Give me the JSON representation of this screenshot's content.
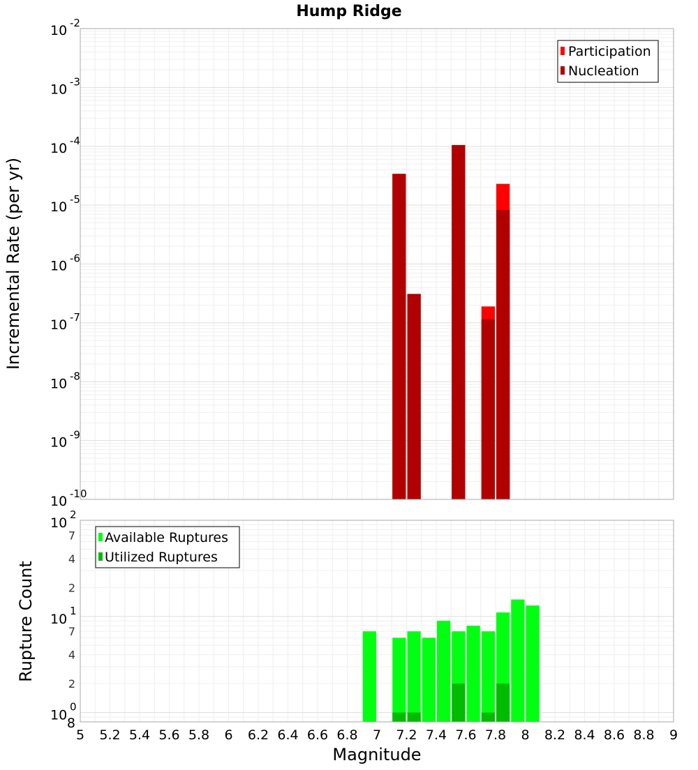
{
  "chart_data": [
    {
      "type": "bar",
      "title": "Hump Ridge",
      "xlabel": "Magnitude",
      "ylabel": "Incremental Rate (per yr)",
      "yscale": "log",
      "xlim": [
        5,
        9
      ],
      "ylim": [
        1e-10,
        0.01
      ],
      "y_tick_exponents": [
        "-2",
        "-3",
        "-4",
        "-5",
        "-6",
        "-7",
        "-8",
        "-9",
        "-10"
      ],
      "legend_position": "top-right",
      "grid": true,
      "series": [
        {
          "name": "Participation",
          "color": "#ff0000",
          "points": [
            {
              "x": 7.15,
              "y": 3.4e-05
            },
            {
              "x": 7.25,
              "y": 3.1e-07
            },
            {
              "x": 7.55,
              "y": 0.000105
            },
            {
              "x": 7.75,
              "y": 1.9e-07
            },
            {
              "x": 7.85,
              "y": 2.3e-05
            }
          ]
        },
        {
          "name": "Nucleation",
          "color": "#b00000",
          "points": [
            {
              "x": 7.15,
              "y": 3.4e-05
            },
            {
              "x": 7.25,
              "y": 3.1e-07
            },
            {
              "x": 7.55,
              "y": 0.000105
            },
            {
              "x": 7.75,
              "y": 1.15e-07
            },
            {
              "x": 7.85,
              "y": 8.3e-06
            }
          ]
        }
      ]
    },
    {
      "type": "bar",
      "xlabel": "Magnitude",
      "ylabel": "Rupture Count",
      "yscale": "log",
      "xlim": [
        5,
        9
      ],
      "ylim": [
        0.8,
        100
      ],
      "x_ticks": [
        "5",
        "5.2",
        "5.4",
        "5.6",
        "5.8",
        "6",
        "6.2",
        "6.4",
        "6.6",
        "6.8",
        "7",
        "7.2",
        "7.4",
        "7.6",
        "7.8",
        "8",
        "8.2",
        "8.4",
        "8.6",
        "8.8",
        "9"
      ],
      "y_major_ticks": [
        {
          "base": "10",
          "exp": "2",
          "value": 100
        },
        {
          "base": "10",
          "exp": "1",
          "value": 10
        },
        {
          "base": "10",
          "exp": "0",
          "value": 1
        }
      ],
      "y_minor_labels": [
        {
          "label": "7",
          "value": 70
        },
        {
          "label": "4",
          "value": 40
        },
        {
          "label": "2",
          "value": 20
        },
        {
          "label": "7",
          "value": 7
        },
        {
          "label": "4",
          "value": 4
        },
        {
          "label": "2",
          "value": 2
        }
      ],
      "y_bottom_label": "8",
      "legend_position": "top-left",
      "grid": true,
      "series": [
        {
          "name": "Available Ruptures",
          "color": "#00ff11",
          "points": [
            {
              "x": 6.95,
              "y": 7
            },
            {
              "x": 7.15,
              "y": 6
            },
            {
              "x": 7.25,
              "y": 7
            },
            {
              "x": 7.35,
              "y": 6
            },
            {
              "x": 7.45,
              "y": 9
            },
            {
              "x": 7.55,
              "y": 7
            },
            {
              "x": 7.65,
              "y": 8
            },
            {
              "x": 7.75,
              "y": 7
            },
            {
              "x": 7.85,
              "y": 11
            },
            {
              "x": 7.95,
              "y": 15
            },
            {
              "x": 8.05,
              "y": 13
            }
          ]
        },
        {
          "name": "Utilized Ruptures",
          "color": "#00bb00",
          "points": [
            {
              "x": 7.15,
              "y": 1
            },
            {
              "x": 7.25,
              "y": 1
            },
            {
              "x": 7.55,
              "y": 2
            },
            {
              "x": 7.75,
              "y": 1
            },
            {
              "x": 7.85,
              "y": 2
            }
          ]
        }
      ]
    }
  ]
}
